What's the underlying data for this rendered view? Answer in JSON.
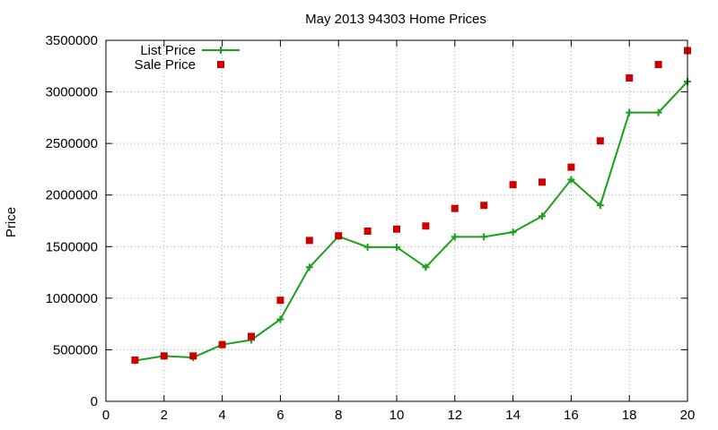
{
  "chart_data": {
    "type": "line",
    "title": "May 2013 94303 Home Prices",
    "xlabel": "",
    "ylabel": "Price",
    "xlim": [
      0,
      20
    ],
    "ylim": [
      0,
      3500000
    ],
    "xticks": [
      0,
      2,
      4,
      6,
      8,
      10,
      12,
      14,
      16,
      18,
      20
    ],
    "yticks": [
      0,
      500000,
      1000000,
      1500000,
      2000000,
      2500000,
      3000000,
      3500000
    ],
    "grid": true,
    "legend_position": "top-left",
    "x": [
      1,
      2,
      3,
      4,
      5,
      6,
      7,
      8,
      9,
      10,
      11,
      12,
      13,
      14,
      15,
      16,
      17,
      18,
      19,
      20
    ],
    "series": [
      {
        "name": "List Price",
        "style": "line-plus",
        "color": "#1aa01a",
        "values": [
          395000,
          440000,
          425000,
          550000,
          595000,
          795000,
          1300000,
          1600000,
          1495000,
          1495000,
          1300000,
          1595000,
          1595000,
          1640000,
          1795000,
          2150000,
          1900000,
          2800000,
          2800000,
          3100000
        ]
      },
      {
        "name": "Sale Price",
        "style": "square",
        "color": "#cc0000",
        "values": [
          400000,
          440000,
          440000,
          550000,
          630000,
          980000,
          1560000,
          1605000,
          1650000,
          1670000,
          1700000,
          1870000,
          1900000,
          2100000,
          2125000,
          2270000,
          2525000,
          3135000,
          3265000,
          3400000
        ]
      }
    ]
  }
}
